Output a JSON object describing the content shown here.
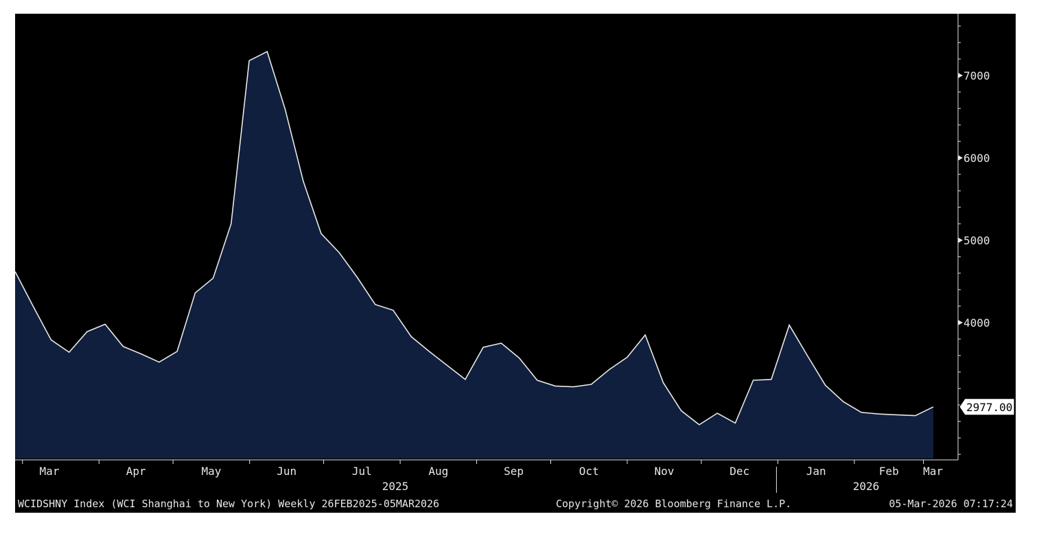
{
  "chart_data": {
    "type": "area",
    "x_start": "2025-02-26",
    "x_end": "2026-03-05",
    "frequency": "Weekly",
    "y_ticks": [
      4000,
      5000,
      6000,
      7000
    ],
    "y_tick_labels": [
      "4000",
      "5000",
      "6000",
      "7000"
    ],
    "ylim": [
      2350,
      7750
    ],
    "month_labels": [
      "Mar",
      "Apr",
      "May",
      "Jun",
      "Jul",
      "Aug",
      "Sep",
      "Oct",
      "Nov",
      "Dec",
      "Jan",
      "Feb",
      "Mar"
    ],
    "year_labels": [
      "2025",
      "2026"
    ],
    "last_value_label": "2977.00",
    "grid": false,
    "colors": {
      "fill": "#0f1f3d",
      "line": "#e8e8e8",
      "background": "#000000"
    },
    "series": [
      {
        "values": [
          4620,
          4200,
          3790,
          3640,
          3890,
          3980,
          3710,
          3620,
          3520,
          3650,
          4360,
          4540,
          5200,
          7180,
          7290,
          6590,
          5720,
          5080,
          4850,
          4550,
          4220,
          4150,
          3830,
          3650,
          3480,
          3310,
          3700,
          3750,
          3570,
          3300,
          3230,
          3220,
          3250,
          3430,
          3580,
          3850,
          3270,
          2930,
          2760,
          2900,
          2780,
          3300,
          3310,
          3970,
          3600,
          3240,
          3040,
          2910,
          2890,
          2880,
          2870,
          2977
        ]
      }
    ]
  },
  "footer": {
    "left": "WCIDSHNY Index (WCI Shanghai to New York) Weekly 26FEB2025-05MAR2026",
    "center": "Copyright© 2026 Bloomberg Finance L.P.",
    "right": "05-Mar-2026 07:17:24"
  }
}
